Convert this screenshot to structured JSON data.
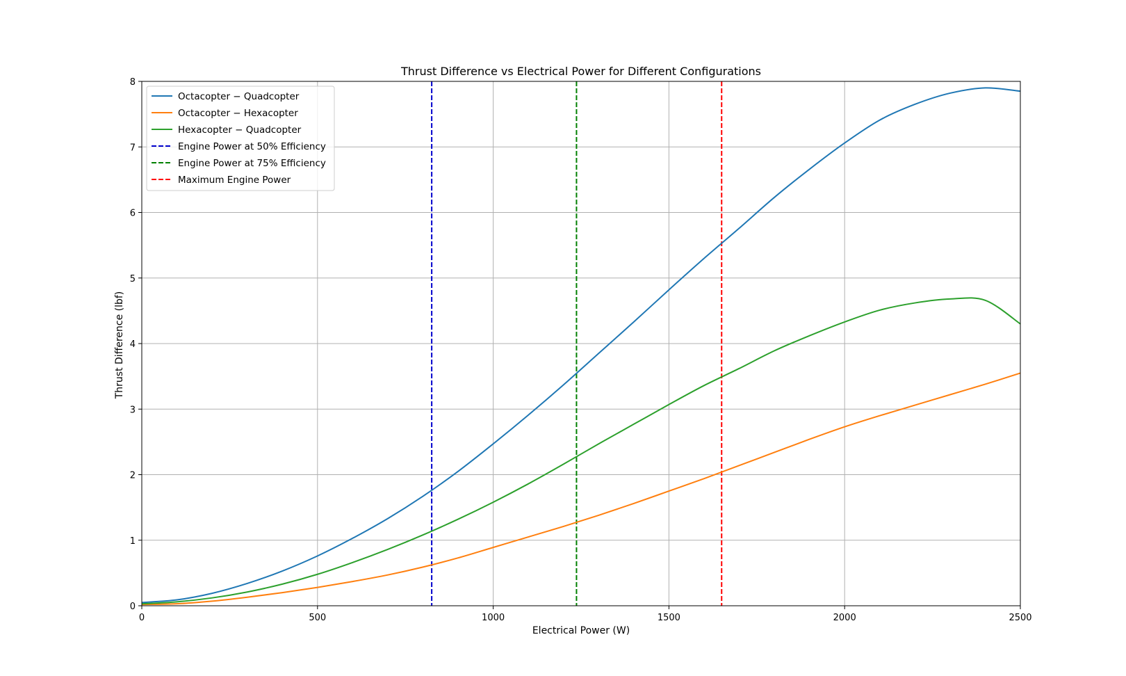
{
  "chart_data": {
    "type": "line",
    "title": "Thrust Difference vs Electrical Power for Different Configurations",
    "xlabel": "Electrical Power (W)",
    "ylabel": "Thrust Difference (lbf)",
    "xlim": [
      0,
      2500
    ],
    "ylim": [
      0,
      8
    ],
    "xticks": [
      "0",
      "500",
      "1000",
      "1500",
      "2000",
      "2500"
    ],
    "yticks": [
      "0",
      "1",
      "2",
      "3",
      "4",
      "5",
      "6",
      "7",
      "8"
    ],
    "grid": true,
    "legend_position": "top-left",
    "x": [
      0,
      100,
      200,
      300,
      400,
      500,
      600,
      700,
      800,
      900,
      1000,
      1100,
      1200,
      1300,
      1400,
      1500,
      1600,
      1700,
      1800,
      1900,
      2000,
      2100,
      2200,
      2300,
      2400,
      2500
    ],
    "series": [
      {
        "name": "Octacopter − Quadcopter",
        "color": "#1f77b4",
        "values": [
          0.05,
          0.09,
          0.19,
          0.34,
          0.53,
          0.76,
          1.03,
          1.33,
          1.67,
          2.05,
          2.47,
          2.91,
          3.37,
          3.85,
          4.33,
          4.82,
          5.3,
          5.76,
          6.23,
          6.66,
          7.06,
          7.41,
          7.65,
          7.82,
          7.9,
          7.85
        ]
      },
      {
        "name": "Octacopter − Hexacopter",
        "color": "#ff7f0e",
        "values": [
          0.02,
          0.03,
          0.07,
          0.13,
          0.2,
          0.28,
          0.37,
          0.47,
          0.59,
          0.73,
          0.89,
          1.05,
          1.21,
          1.38,
          1.56,
          1.75,
          1.94,
          2.14,
          2.34,
          2.54,
          2.73,
          2.9,
          3.06,
          3.22,
          3.38,
          3.55
        ]
      },
      {
        "name": "Hexacopter − Quadcopter",
        "color": "#2ca02c",
        "values": [
          0.03,
          0.06,
          0.12,
          0.21,
          0.33,
          0.48,
          0.66,
          0.86,
          1.08,
          1.32,
          1.58,
          1.86,
          2.16,
          2.47,
          2.77,
          3.07,
          3.36,
          3.62,
          3.89,
          4.12,
          4.33,
          4.51,
          4.62,
          4.68,
          4.66,
          4.3
        ]
      }
    ],
    "vlines": [
      {
        "name": "Engine Power at 50% Efficiency",
        "x": 825,
        "color": "#0000cc"
      },
      {
        "name": "Engine Power at 75% Efficiency",
        "x": 1237,
        "color": "#008000"
      },
      {
        "name": "Maximum Engine Power",
        "x": 1650,
        "color": "#ff0000"
      }
    ]
  }
}
